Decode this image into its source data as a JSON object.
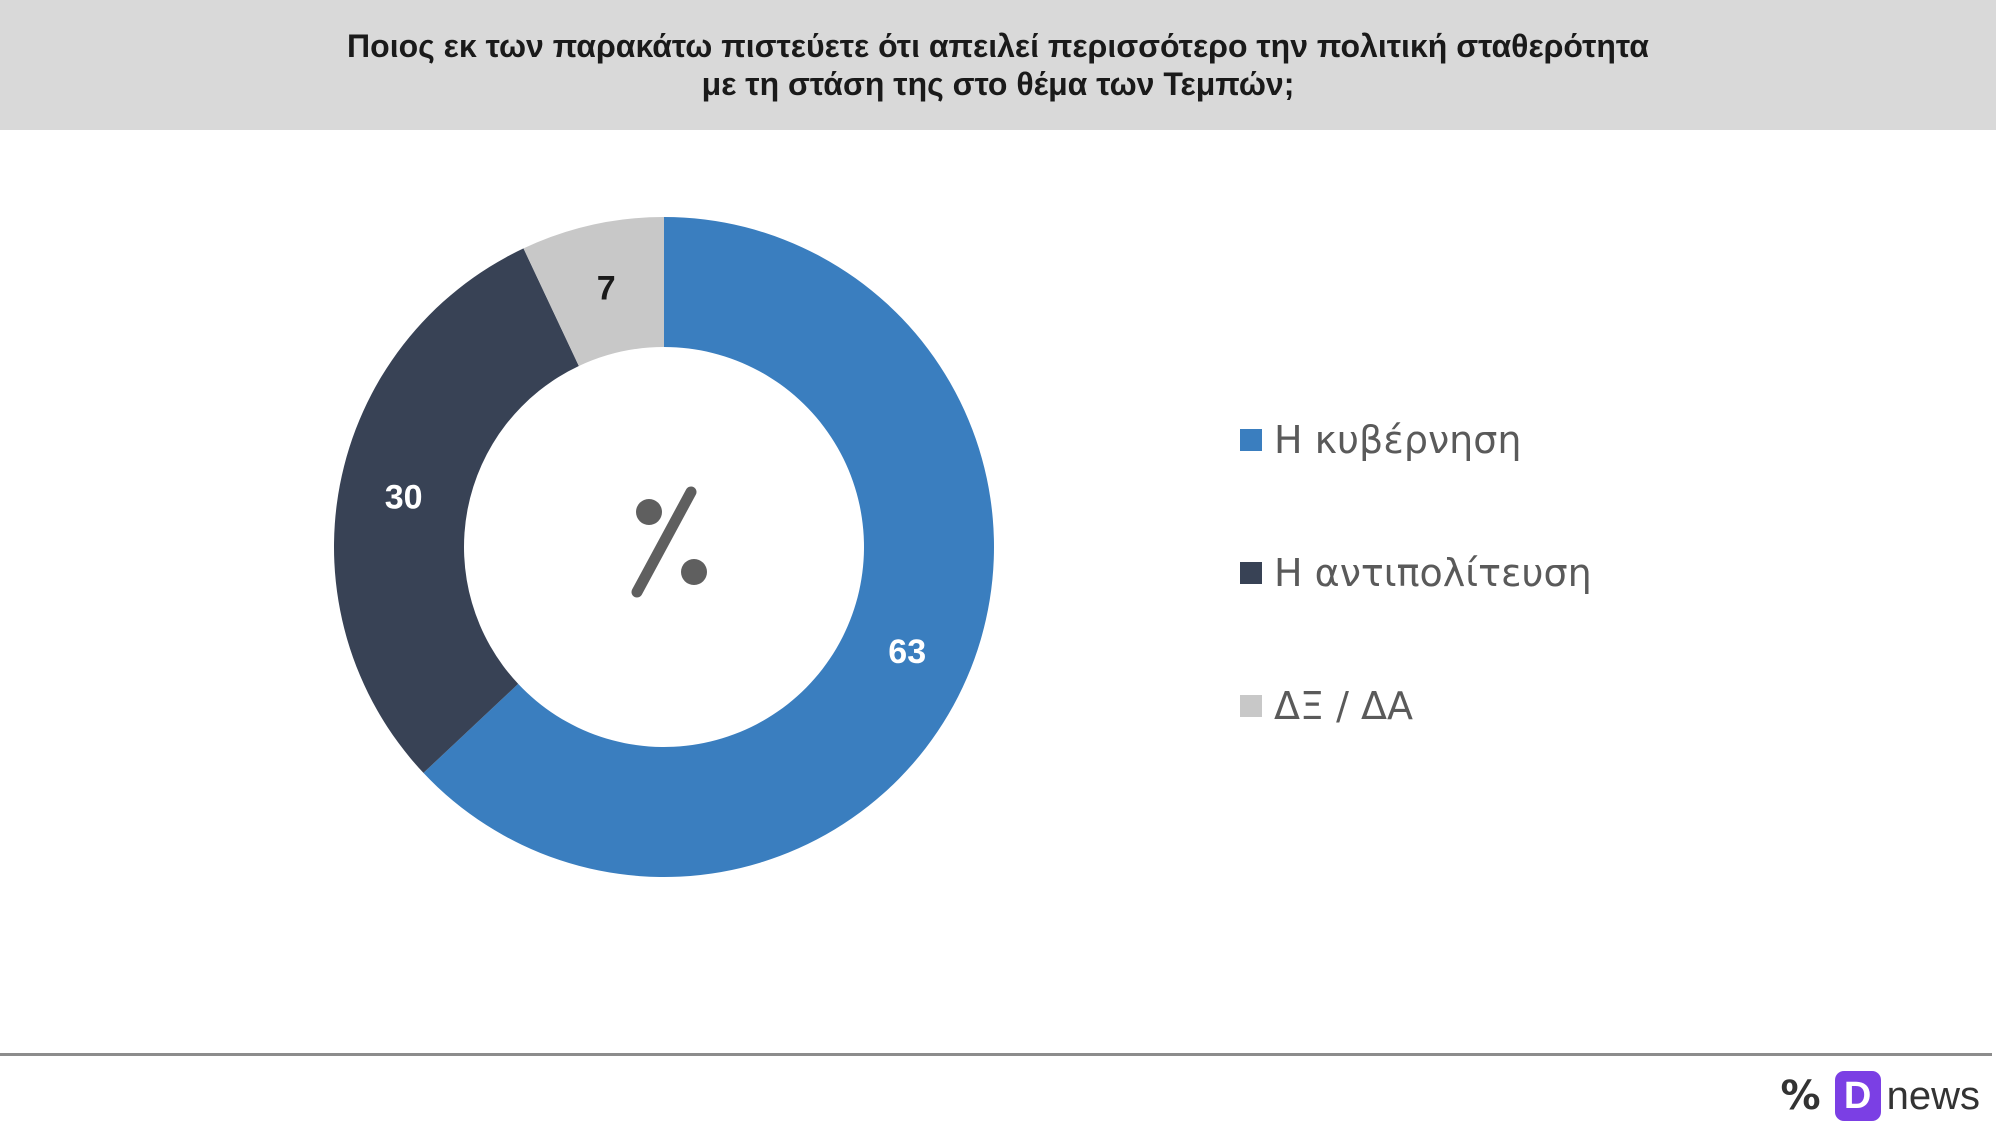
{
  "colors": {
    "government": "#3a7ebf",
    "opposition": "#384255",
    "dk_na": "#c8c8c8",
    "center_symbol": "#5f5f5f"
  },
  "chart_data": {
    "type": "pie",
    "title_lines": [
      "Ποιος εκ των παρακάτω πιστεύετε ότι απειλεί περισσότερο την πολιτική σταθερότητα",
      "με τη στάση της στο θέμα των Τεμπών;"
    ],
    "center_label": "%",
    "slices": [
      {
        "label": "Η κυβέρνηση",
        "value": 63,
        "color": "#3a7ebf"
      },
      {
        "label": "Η αντιπολίτευση",
        "value": 30,
        "color": "#384255"
      },
      {
        "label": "ΔΞ / ΔΑ",
        "value": 7,
        "color": "#c8c8c8"
      }
    ],
    "legend_position": "right"
  },
  "footer": {
    "pct_mark": "%",
    "badge": "D",
    "brand": "news"
  }
}
